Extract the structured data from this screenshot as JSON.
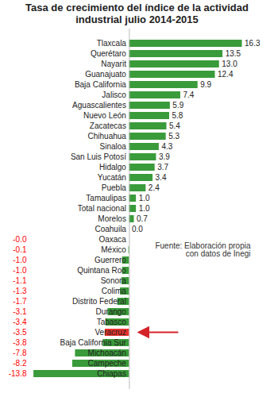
{
  "chart_data": {
    "type": "bar",
    "orientation": "horizontal",
    "title": "Tasa de crecimiento del índice de la actividad industrial julio 2014-2015",
    "note": "Fuente: Elaboración propia con datos de Inegi",
    "categories": [
      "Tlaxcala",
      "Querétaro",
      "Nayarit",
      "Guanajuato",
      "Baja California",
      "Jalisco",
      "Aguascalientes",
      "Nuevo León",
      "Zacatecas",
      "Chihuahua",
      "Sinaloa",
      "San Luis Potosí",
      "Hidalgo",
      "Yucatán",
      "Puebla",
      "Tamaulipas",
      "Total nacional",
      "Morelos",
      "Coahuila",
      "Oaxaca",
      "México",
      "Guerrero",
      "Quintana Roo",
      "Sonora",
      "Colima",
      "Distrito Federal",
      "Durango",
      "Tabasco",
      "Veracruz",
      "Baja California Sur",
      "Michoacán",
      "Campeche",
      "Chiapas"
    ],
    "values": [
      16.3,
      13.5,
      13.0,
      12.4,
      9.9,
      7.4,
      5.9,
      5.8,
      5.4,
      5.3,
      4.3,
      3.9,
      3.7,
      3.4,
      2.4,
      1.0,
      1.0,
      0.7,
      0.0,
      -0.0,
      -0.1,
      -1.0,
      -1.0,
      -1.1,
      -1.3,
      -1.7,
      -3.1,
      -3.4,
      -3.5,
      -3.8,
      -7.8,
      -8.2,
      -13.8
    ],
    "value_labels": [
      "16.3",
      "13.5",
      "13.0",
      "12.4",
      "9.9",
      "7.4",
      "5.9",
      "5.8",
      "5.4",
      "5.3",
      "4.3",
      "3.9",
      "3.7",
      "3.4",
      "2.4",
      "1.0",
      "1.0",
      "0.7",
      "0.0",
      "-0.0",
      "-0.1",
      "-1.0",
      "-1.0",
      "-1.1",
      "-1.3",
      "-1.7",
      "-3.1",
      "-3.4",
      "-3.5",
      "-3.8",
      "-7.8",
      "-8.2",
      "-13.8"
    ],
    "colors": [
      "#3a9b3a",
      "#3a9b3a",
      "#3a9b3a",
      "#3a9b3a",
      "#3a9b3a",
      "#3a9b3a",
      "#3a9b3a",
      "#3a9b3a",
      "#3a9b3a",
      "#3a9b3a",
      "#3a9b3a",
      "#3a9b3a",
      "#3a9b3a",
      "#3a9b3a",
      "#3a9b3a",
      "#3a9b3a",
      "#3a9b3a",
      "#3a9b3a",
      "#3a9b3a",
      "#3a9b3a",
      "#3a9b3a",
      "#3a9b3a",
      "#3a9b3a",
      "#3a9b3a",
      "#3a9b3a",
      "#3a9b3a",
      "#3a9b3a",
      "#3a9b3a",
      "#e8322c",
      "#3a9b3a",
      "#3a9b3a",
      "#3a9b3a",
      "#3a9b3a"
    ],
    "xlim": [
      -14.5,
      17.5
    ],
    "data_labels": true,
    "tick_labels": false,
    "grid": false
  }
}
